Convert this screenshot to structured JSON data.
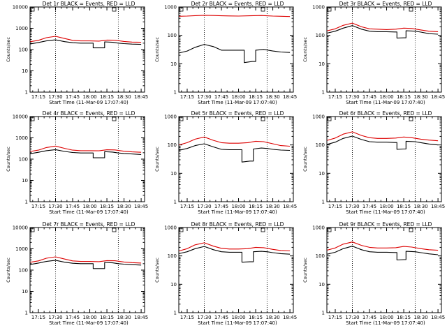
{
  "window": {
    "title": ""
  },
  "colors": {
    "events": "#000000",
    "lld": "#dd0000",
    "axes": "#000000",
    "background": "#ffffff"
  },
  "chart_data": [
    {
      "type": "line",
      "title": "Det 1r BLACK = Events, RED = LLD",
      "xlabel": "Start Time (11-Mar-09 17:07:40)",
      "ylabel": "Counts/sec",
      "y_scale": "log",
      "ylim": [
        1,
        10000
      ],
      "x_ticks": [
        "17:15",
        "17:30",
        "17:45",
        "18:00",
        "18:15",
        "18:30",
        "18:45"
      ],
      "y_ticks": [
        "1",
        "10",
        "100",
        "1000",
        "10000"
      ],
      "marker_lines": [
        "17:30",
        "18:25"
      ],
      "grid": false,
      "series": [
        {
          "name": "Events",
          "color": "#000000",
          "x": [
            "17:08",
            "17:15",
            "17:22",
            "17:30",
            "17:38",
            "17:45",
            "17:52",
            "18:00",
            "18:03",
            "18:10",
            "18:13",
            "18:20",
            "18:25",
            "18:30",
            "18:37",
            "18:45"
          ],
          "y": [
            185,
            215,
            255,
            285,
            235,
            210,
            200,
            200,
            120,
            120,
            230,
            220,
            200,
            190,
            180,
            175
          ]
        },
        {
          "name": "LLD",
          "color": "#dd0000",
          "x": [
            "17:08",
            "17:15",
            "17:22",
            "17:30",
            "17:38",
            "17:45",
            "17:52",
            "18:00",
            "18:08",
            "18:15",
            "18:22",
            "18:30",
            "18:37",
            "18:45"
          ],
          "y": [
            235,
            270,
            360,
            420,
            330,
            270,
            255,
            255,
            250,
            280,
            275,
            240,
            225,
            220
          ]
        }
      ]
    },
    {
      "type": "line",
      "title": "Det 2r BLACK = Events, RED = LLD",
      "xlabel": "Start Time (11-Mar-09 17:07:40)",
      "ylabel": "Counts/sec",
      "y_scale": "log",
      "ylim": [
        1,
        1000
      ],
      "x_ticks": [
        "17:15",
        "17:30",
        "17:45",
        "18:00",
        "18:15",
        "18:30",
        "18:45"
      ],
      "y_ticks": [
        "1",
        "10",
        "100",
        "1000"
      ],
      "marker_lines": [
        "17:30",
        "18:25"
      ],
      "grid": false,
      "series": [
        {
          "name": "Events",
          "color": "#000000",
          "x": [
            "17:08",
            "17:15",
            "17:22",
            "17:30",
            "17:38",
            "17:45",
            "17:52",
            "18:00",
            "18:05",
            "18:12",
            "18:15",
            "18:22",
            "18:30",
            "18:37",
            "18:45"
          ],
          "y": [
            24,
            28,
            38,
            48,
            40,
            30,
            30,
            30,
            11,
            12,
            30,
            32,
            28,
            26,
            25
          ]
        },
        {
          "name": "LLD",
          "color": "#dd0000",
          "x": [
            "17:08",
            "17:15",
            "17:22",
            "17:30",
            "17:38",
            "17:45",
            "17:52",
            "18:00",
            "18:10",
            "18:20",
            "18:30",
            "18:37",
            "18:45"
          ],
          "y": [
            470,
            480,
            495,
            510,
            500,
            490,
            485,
            480,
            490,
            500,
            480,
            470,
            460
          ]
        }
      ]
    },
    {
      "type": "line",
      "title": "Det 3r BLACK = Events, RED = LLD",
      "xlabel": "Start Time (11-Mar-09 17:07:40)",
      "ylabel": "Counts/sec",
      "y_scale": "log",
      "ylim": [
        1,
        1000
      ],
      "x_ticks": [
        "17:15",
        "17:30",
        "17:45",
        "18:00",
        "18:15",
        "18:30",
        "18:45"
      ],
      "y_ticks": [
        "1",
        "10",
        "100",
        "1000"
      ],
      "marker_lines": [
        "17:30",
        "18:25"
      ],
      "grid": false,
      "series": [
        {
          "name": "Events",
          "color": "#000000",
          "x": [
            "17:08",
            "17:15",
            "17:22",
            "17:30",
            "17:38",
            "17:45",
            "17:52",
            "18:00",
            "18:07",
            "18:09",
            "18:15",
            "18:17",
            "18:25",
            "18:30",
            "18:37",
            "18:45"
          ],
          "y": [
            120,
            140,
            180,
            220,
            165,
            140,
            135,
            135,
            132,
            80,
            82,
            145,
            140,
            130,
            115,
            110
          ]
        },
        {
          "name": "LLD",
          "color": "#dd0000",
          "x": [
            "17:08",
            "17:15",
            "17:22",
            "17:30",
            "17:38",
            "17:45",
            "17:52",
            "18:00",
            "18:08",
            "18:15",
            "18:22",
            "18:30",
            "18:37",
            "18:45"
          ],
          "y": [
            145,
            170,
            225,
            270,
            200,
            170,
            165,
            160,
            165,
            180,
            175,
            155,
            140,
            135
          ]
        }
      ]
    },
    {
      "type": "line",
      "title": "Det 4r BLACK = Events, RED = LLD",
      "xlabel": "Start Time (11-Mar-09 17:07:40)",
      "ylabel": "Counts/sec",
      "y_scale": "log",
      "ylim": [
        1,
        10000
      ],
      "x_ticks": [
        "17:15",
        "17:30",
        "17:45",
        "18:00",
        "18:15",
        "18:30",
        "18:45"
      ],
      "y_ticks": [
        "1",
        "10",
        "100",
        "1000",
        "10000"
      ],
      "marker_lines": [
        "17:30",
        "18:25"
      ],
      "grid": false,
      "series": [
        {
          "name": "Events",
          "color": "#000000",
          "x": [
            "17:08",
            "17:15",
            "17:22",
            "17:30",
            "17:38",
            "17:45",
            "17:52",
            "18:00",
            "18:03",
            "18:10",
            "18:13",
            "18:20",
            "18:25",
            "18:30",
            "18:37",
            "18:45"
          ],
          "y": [
            180,
            210,
            250,
            280,
            230,
            205,
            195,
            195,
            115,
            115,
            225,
            215,
            195,
            185,
            175,
            165
          ]
        },
        {
          "name": "LLD",
          "color": "#dd0000",
          "x": [
            "17:08",
            "17:15",
            "17:22",
            "17:30",
            "17:38",
            "17:45",
            "17:52",
            "18:00",
            "18:08",
            "18:15",
            "18:22",
            "18:30",
            "18:37",
            "18:45"
          ],
          "y": [
            230,
            265,
            350,
            410,
            320,
            265,
            250,
            250,
            245,
            275,
            270,
            235,
            220,
            210
          ]
        }
      ]
    },
    {
      "type": "line",
      "title": "Det 5r BLACK = Events, RED = LLD",
      "xlabel": "Start Time (11-Mar-09 17:07:40)",
      "ylabel": "Counts/sec",
      "y_scale": "log",
      "ylim": [
        1,
        1000
      ],
      "x_ticks": [
        "17:15",
        "17:30",
        "17:45",
        "18:00",
        "18:15",
        "18:30",
        "18:45"
      ],
      "y_ticks": [
        "1",
        "10",
        "100",
        "1000"
      ],
      "marker_lines": [
        "17:30",
        "18:25"
      ],
      "grid": false,
      "series": [
        {
          "name": "Events",
          "color": "#000000",
          "x": [
            "17:08",
            "17:15",
            "17:22",
            "17:30",
            "17:38",
            "17:45",
            "17:52",
            "18:00",
            "18:03",
            "18:10",
            "18:13",
            "18:20",
            "18:25",
            "18:30",
            "18:37",
            "18:45"
          ],
          "y": [
            65,
            75,
            95,
            110,
            85,
            70,
            68,
            68,
            25,
            27,
            72,
            78,
            75,
            70,
            66,
            64
          ]
        },
        {
          "name": "LLD",
          "color": "#dd0000",
          "x": [
            "17:08",
            "17:15",
            "17:22",
            "17:30",
            "17:38",
            "17:45",
            "17:52",
            "18:00",
            "18:08",
            "18:15",
            "18:22",
            "18:30",
            "18:37",
            "18:45"
          ],
          "y": [
            100,
            120,
            160,
            190,
            145,
            120,
            115,
            115,
            120,
            135,
            130,
            110,
            95,
            90
          ]
        }
      ]
    },
    {
      "type": "line",
      "title": "Det 6r BLACK = Events, RED = LLD",
      "xlabel": "Start Time (11-Mar-09 17:07:40)",
      "ylabel": "Counts/sec",
      "y_scale": "log",
      "ylim": [
        1,
        1000
      ],
      "x_ticks": [
        "17:15",
        "17:30",
        "17:45",
        "18:00",
        "18:15",
        "18:30",
        "18:45"
      ],
      "y_ticks": [
        "1",
        "10",
        "100",
        "1000"
      ],
      "marker_lines": [
        "17:30",
        "18:25"
      ],
      "grid": false,
      "series": [
        {
          "name": "Events",
          "color": "#000000",
          "x": [
            "17:08",
            "17:15",
            "17:22",
            "17:30",
            "17:38",
            "17:45",
            "17:52",
            "18:00",
            "18:07",
            "18:09",
            "18:15",
            "18:17",
            "18:25",
            "18:30",
            "18:37",
            "18:45"
          ],
          "y": [
            105,
            125,
            170,
            205,
            155,
            130,
            125,
            125,
            122,
            70,
            72,
            135,
            130,
            120,
            108,
            100
          ]
        },
        {
          "name": "LLD",
          "color": "#dd0000",
          "x": [
            "17:08",
            "17:15",
            "17:22",
            "17:30",
            "17:38",
            "17:45",
            "17:52",
            "18:00",
            "18:08",
            "18:15",
            "18:22",
            "18:30",
            "18:37",
            "18:45"
          ],
          "y": [
            145,
            175,
            240,
            290,
            215,
            180,
            170,
            170,
            175,
            190,
            180,
            160,
            148,
            140
          ]
        }
      ]
    },
    {
      "type": "line",
      "title": "Det 7r BLACK = Events, RED = LLD",
      "xlabel": "Start Time (11-Mar-09 17:07:40)",
      "ylabel": "Counts/sec",
      "y_scale": "log",
      "ylim": [
        1,
        10000
      ],
      "x_ticks": [
        "17:15",
        "17:30",
        "17:45",
        "18:00",
        "18:15",
        "18:30",
        "18:45"
      ],
      "y_ticks": [
        "1",
        "10",
        "100",
        "1000",
        "10000"
      ],
      "marker_lines": [
        "17:30",
        "18:25"
      ],
      "grid": false,
      "series": [
        {
          "name": "Events",
          "color": "#000000",
          "x": [
            "17:08",
            "17:15",
            "17:22",
            "17:30",
            "17:38",
            "17:45",
            "17:52",
            "18:00",
            "18:03",
            "18:10",
            "18:13",
            "18:20",
            "18:25",
            "18:30",
            "18:37",
            "18:45"
          ],
          "y": [
            185,
            215,
            255,
            290,
            235,
            210,
            200,
            200,
            118,
            118,
            230,
            220,
            200,
            190,
            180,
            172
          ]
        },
        {
          "name": "LLD",
          "color": "#dd0000",
          "x": [
            "17:08",
            "17:15",
            "17:22",
            "17:30",
            "17:38",
            "17:45",
            "17:52",
            "18:00",
            "18:08",
            "18:15",
            "18:22",
            "18:30",
            "18:37",
            "18:45"
          ],
          "y": [
            235,
            270,
            360,
            420,
            330,
            270,
            255,
            255,
            250,
            280,
            275,
            240,
            225,
            215
          ]
        }
      ]
    },
    {
      "type": "line",
      "title": "Det 8r BLACK = Events, RED = LLD",
      "xlabel": "Start Time (11-Mar-09 17:07:40)",
      "ylabel": "Counts/sec",
      "y_scale": "log",
      "ylim": [
        1,
        1000
      ],
      "x_ticks": [
        "17:15",
        "17:30",
        "17:45",
        "18:00",
        "18:15",
        "18:30",
        "18:45"
      ],
      "y_ticks": [
        "1",
        "10",
        "100",
        "1000"
      ],
      "marker_lines": [
        "17:30",
        "18:25"
      ],
      "grid": false,
      "series": [
        {
          "name": "Events",
          "color": "#000000",
          "x": [
            "17:08",
            "17:15",
            "17:22",
            "17:30",
            "17:38",
            "17:45",
            "17:52",
            "18:00",
            "18:03",
            "18:10",
            "18:13",
            "18:20",
            "18:25",
            "18:30",
            "18:37",
            "18:45"
          ],
          "y": [
            120,
            140,
            180,
            215,
            165,
            140,
            135,
            135,
            60,
            62,
            140,
            145,
            140,
            130,
            120,
            115
          ]
        },
        {
          "name": "LLD",
          "color": "#dd0000",
          "x": [
            "17:08",
            "17:15",
            "17:22",
            "17:30",
            "17:38",
            "17:45",
            "17:52",
            "18:00",
            "18:08",
            "18:15",
            "18:22",
            "18:30",
            "18:37",
            "18:45"
          ],
          "y": [
            150,
            180,
            245,
            290,
            220,
            185,
            175,
            175,
            180,
            200,
            195,
            170,
            155,
            150
          ]
        }
      ]
    },
    {
      "type": "line",
      "title": "Det 9r BLACK = Events, RED = LLD",
      "xlabel": "Start Time (11-Mar-09 17:07:40)",
      "ylabel": "Counts/sec",
      "y_scale": "log",
      "ylim": [
        1,
        1000
      ],
      "x_ticks": [
        "17:15",
        "17:30",
        "17:45",
        "18:00",
        "18:15",
        "18:30",
        "18:45"
      ],
      "y_ticks": [
        "1",
        "10",
        "100",
        "1000"
      ],
      "marker_lines": [
        "17:30",
        "18:25"
      ],
      "grid": false,
      "series": [
        {
          "name": "Events",
          "color": "#000000",
          "x": [
            "17:08",
            "17:15",
            "17:22",
            "17:30",
            "17:38",
            "17:45",
            "17:52",
            "18:00",
            "18:07",
            "18:09",
            "18:15",
            "18:17",
            "18:25",
            "18:30",
            "18:37",
            "18:45"
          ],
          "y": [
            115,
            135,
            180,
            220,
            165,
            140,
            135,
            135,
            132,
            72,
            74,
            145,
            140,
            130,
            118,
            110
          ]
        },
        {
          "name": "LLD",
          "color": "#dd0000",
          "x": [
            "17:08",
            "17:15",
            "17:22",
            "17:30",
            "17:38",
            "17:45",
            "17:52",
            "18:00",
            "18:08",
            "18:15",
            "18:22",
            "18:30",
            "18:37",
            "18:45"
          ],
          "y": [
            160,
            190,
            260,
            310,
            235,
            200,
            190,
            190,
            195,
            215,
            205,
            180,
            165,
            158
          ]
        }
      ]
    }
  ]
}
